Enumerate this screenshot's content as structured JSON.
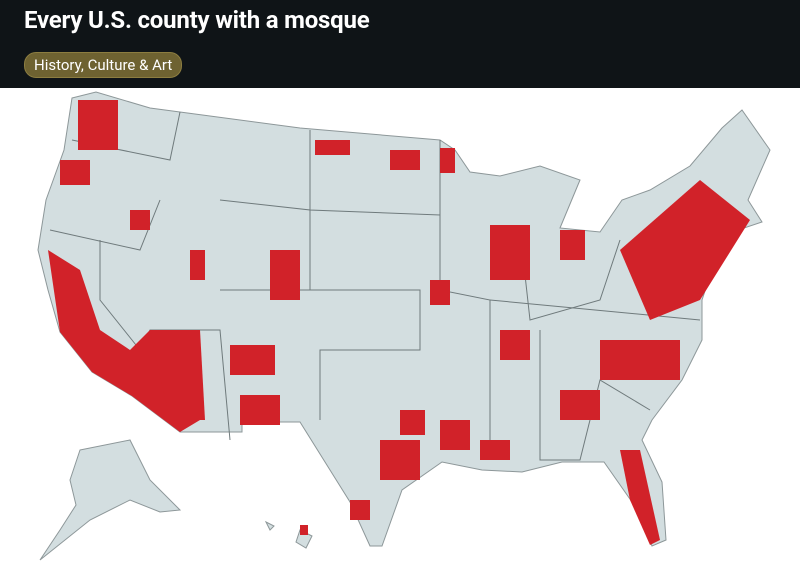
{
  "header": {
    "title": "Every U.S. county with a mosque",
    "tag": "History, Culture & Art"
  }
}
